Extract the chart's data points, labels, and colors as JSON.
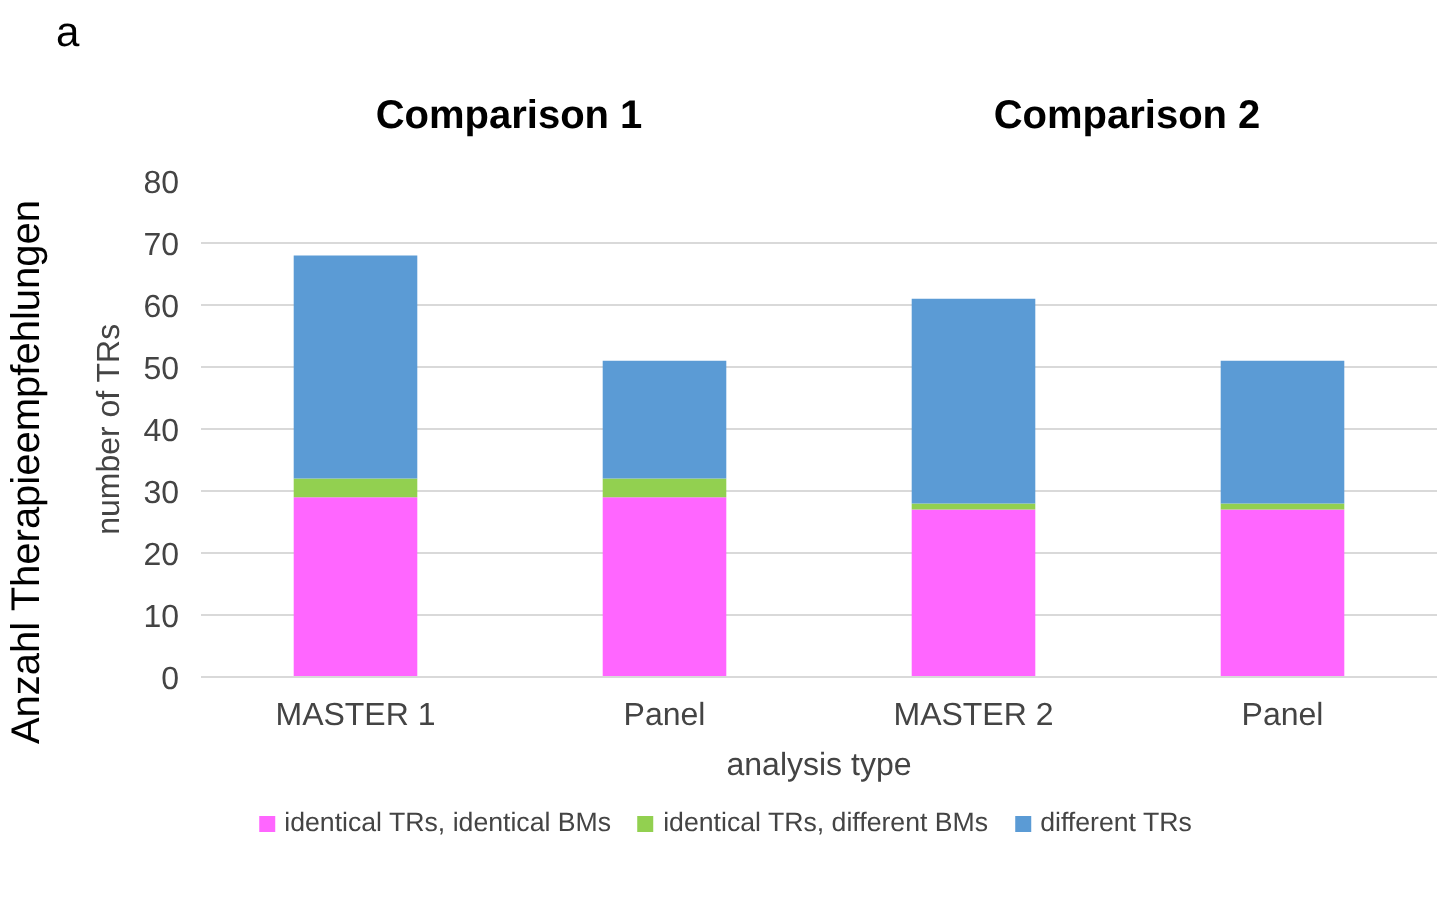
{
  "chart_data": {
    "type": "bar",
    "stacked": true,
    "xlabel": "analysis type",
    "ylabel": "number of TRs",
    "categories": [
      "MASTER 1",
      "Panel",
      "MASTER 2",
      "Panel"
    ],
    "series": [
      {
        "name": "identical TRs, identical BMs",
        "color": "#ff66ff",
        "values": [
          29,
          29,
          27,
          27
        ]
      },
      {
        "name": "identical TRs, different BMs",
        "color": "#92d050",
        "values": [
          3,
          3,
          1,
          1
        ]
      },
      {
        "name": "different TRs",
        "color": "#5b9bd5",
        "values": [
          36,
          19,
          33,
          23
        ]
      }
    ],
    "ylim": [
      0,
      80
    ],
    "yticks": [
      0,
      10,
      20,
      30,
      40,
      50,
      60,
      70,
      80
    ],
    "grid": "y",
    "legend": "bottom",
    "annotations": [
      "a",
      "Comparison 1",
      "Comparison 2",
      "Anzahl Therapieempfehlungen"
    ]
  }
}
